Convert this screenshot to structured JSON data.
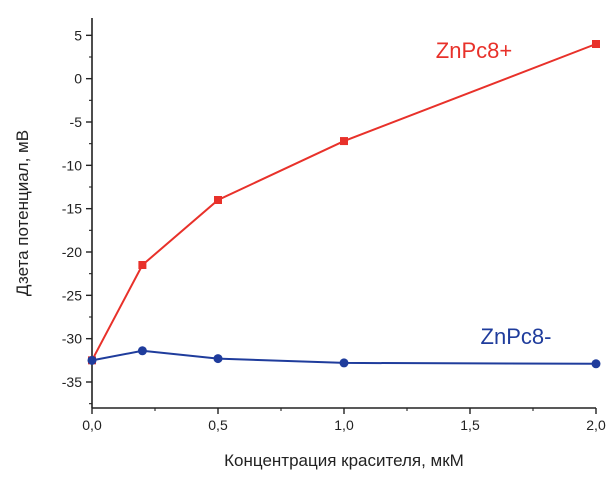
{
  "chart_data": {
    "type": "line",
    "title": "",
    "xlabel": "Концентрация красителя, мкМ",
    "ylabel": "Дзета потенциал, мВ",
    "xlim": [
      0.0,
      2.0
    ],
    "ylim": [
      -38,
      7
    ],
    "x_ticks": [
      0.0,
      0.5,
      1.0,
      1.5,
      2.0
    ],
    "x_tick_labels": [
      "0,0",
      "0,5",
      "1,0",
      "1,5",
      "2,0"
    ],
    "y_ticks": [
      5,
      0,
      -5,
      -10,
      -15,
      -20,
      -25,
      -30,
      -35
    ],
    "y_tick_labels": [
      "5",
      "0",
      "-5",
      "-10",
      "-15",
      "-20",
      "-25",
      "-30",
      "-35"
    ],
    "grid": false,
    "legend": "series labels placed next to lines, upper right and lower right",
    "series": [
      {
        "name": "ZnPc8+",
        "color": "#e8312a",
        "marker": "square",
        "x": [
          0.0,
          0.2,
          0.5,
          1.0,
          2.0
        ],
        "y": [
          -32.5,
          -21.5,
          -14.0,
          -7.2,
          4.0
        ]
      },
      {
        "name": "ZnPc8-",
        "color": "#1f3c9c",
        "marker": "circle",
        "x": [
          0.0,
          0.2,
          0.5,
          1.0,
          2.0
        ],
        "y": [
          -32.5,
          -31.4,
          -32.3,
          -32.8,
          -32.9
        ]
      }
    ]
  }
}
